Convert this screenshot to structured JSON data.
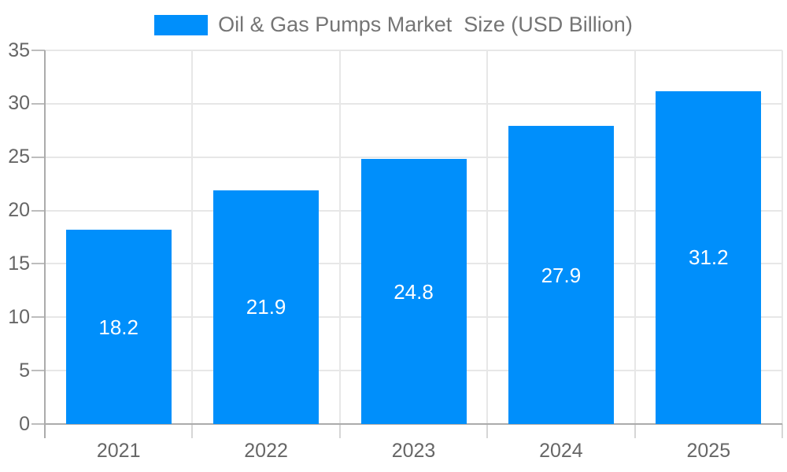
{
  "legend": {
    "label": "Oil & Gas Pumps Market  Size (USD Billion)"
  },
  "chart_data": {
    "type": "bar",
    "title": "Oil & Gas Pumps Market  Size (USD Billion)",
    "categories": [
      "2021",
      "2022",
      "2023",
      "2024",
      "2025"
    ],
    "series": [
      {
        "name": "Oil & Gas Pumps Market  Size (USD Billion)",
        "values": [
          18.2,
          21.9,
          24.8,
          27.9,
          31.2
        ]
      }
    ],
    "value_labels": [
      "18.2",
      "21.9",
      "24.8",
      "27.9",
      "31.2"
    ],
    "xlabel": "",
    "ylabel": "",
    "ylim": [
      0,
      35
    ],
    "ytick_step": 5,
    "yticks": [
      0,
      5,
      10,
      15,
      20,
      25,
      30,
      35
    ],
    "grid": "on",
    "gridlines": "horizontal at every y tick, vertical at category boundaries and right edge",
    "legend_position": "top-center",
    "colors": {
      "bar": "#008FFB",
      "legend_text": "#757575",
      "axis_label": "#666666",
      "value_label": "#ffffff",
      "gridline": "#e7e7e7",
      "axis_line": "#ababab",
      "y_tick": "#bdbdbd",
      "x_tick": "#d6d6d6",
      "background": "#ffffff"
    }
  }
}
